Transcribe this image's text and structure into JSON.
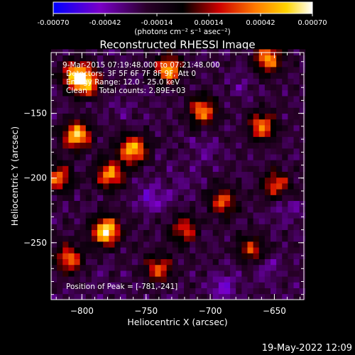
{
  "chart_data": {
    "type": "heatmap",
    "title": "Reconstructed RHESSI Image",
    "xlabel": "Heliocentric X (arcsec)",
    "ylabel": "Heliocentric Y (arcsec)",
    "xlim": [
      -824,
      -627
    ],
    "ylim": [
      -294,
      -103
    ],
    "xticks": [
      -800,
      -750,
      -700,
      -650
    ],
    "yticks": [
      -250,
      -200,
      -150
    ],
    "colorbar": {
      "min": -0.0007,
      "max": 0.0007,
      "ticks": [
        "-0.00070",
        "-0.00042",
        "-0.00014",
        "0.00014",
        "0.00042",
        "0.00070"
      ],
      "label": "(photons cm⁻² s⁻¹ asec⁻²)",
      "stops": [
        "#0000ff",
        "#7a00c8",
        "#2a002a",
        "#000000",
        "#cc0000",
        "#ff7a00",
        "#ffd400",
        "#ffffff"
      ]
    },
    "annotations": [
      "9-Mar-2015 07:19:48.000 to 07:21:48.000",
      "Detectors: 3F 5F 6F 7F 8F 9F, Att 0",
      "Energy Range: 12.0 - 25.0 keV",
      "Clean     Total counts: 2.89E+03"
    ],
    "peak": {
      "text": "Position of Peak = [-781,-241]",
      "x": -781,
      "y": -241
    },
    "hot_spots": [
      {
        "x": -781,
        "y": -241,
        "value": 0.0007
      },
      {
        "x": -804,
        "y": -167,
        "value": 0.00058
      },
      {
        "x": -760,
        "y": -178,
        "value": 0.00055
      },
      {
        "x": -733,
        "y": -116,
        "value": 0.00052
      },
      {
        "x": -797,
        "y": -126,
        "value": 0.00048
      },
      {
        "x": -706,
        "y": -148,
        "value": 0.00042
      },
      {
        "x": -660,
        "y": -160,
        "value": 0.0004
      },
      {
        "x": -655,
        "y": -108,
        "value": 0.00044
      },
      {
        "x": -810,
        "y": -262,
        "value": 0.0004
      },
      {
        "x": -778,
        "y": -197,
        "value": 0.00045
      },
      {
        "x": -740,
        "y": -270,
        "value": 0.00032
      },
      {
        "x": -690,
        "y": -218,
        "value": 0.00034
      },
      {
        "x": -648,
        "y": -205,
        "value": 0.00032
      },
      {
        "x": -720,
        "y": -240,
        "value": 0.0003
      },
      {
        "x": -668,
        "y": -255,
        "value": 0.00026
      },
      {
        "x": -818,
        "y": -200,
        "value": 0.00036
      },
      {
        "x": -805,
        "y": -120,
        "value": 0.00042
      }
    ],
    "cold_spots": [
      {
        "x": -745,
        "y": -215,
        "value": -0.0004
      },
      {
        "x": -690,
        "y": -285,
        "value": -0.00042
      },
      {
        "x": -640,
        "y": -222,
        "value": -0.00036
      },
      {
        "x": -705,
        "y": -178,
        "value": -0.00032
      },
      {
        "x": -765,
        "y": -145,
        "value": -0.00026
      },
      {
        "x": -675,
        "y": -128,
        "value": -0.0003
      },
      {
        "x": -720,
        "y": -205,
        "value": -0.00028
      },
      {
        "x": -790,
        "y": -282,
        "value": -0.00024
      },
      {
        "x": -655,
        "y": -270,
        "value": -0.00034
      },
      {
        "x": -818,
        "y": -150,
        "value": -0.00022
      }
    ]
  },
  "footer": {
    "timestamp": "19-May-2022 12:09"
  }
}
